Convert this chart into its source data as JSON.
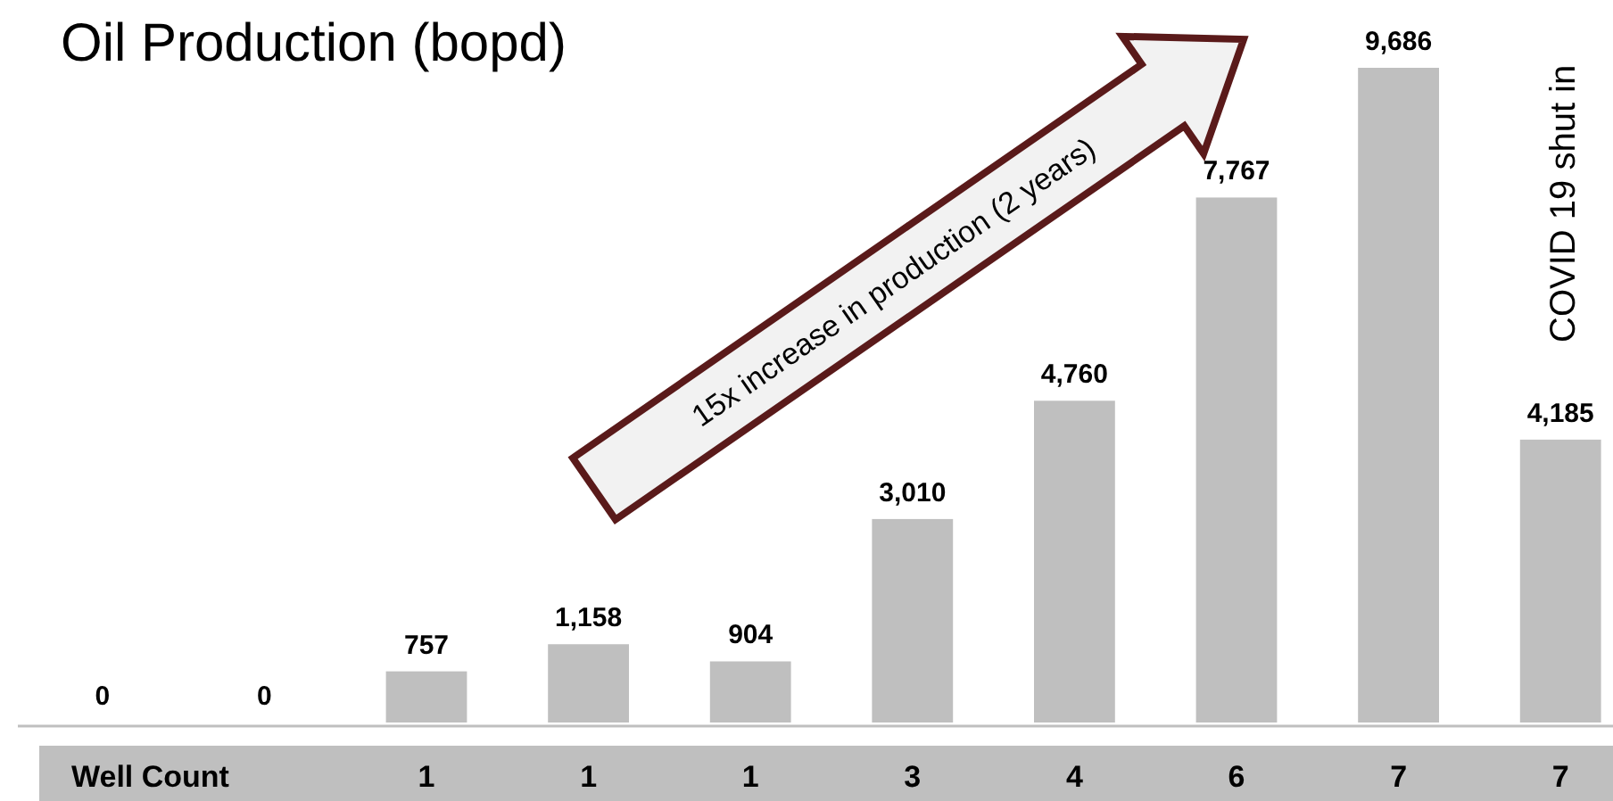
{
  "chart_data": {
    "type": "bar",
    "title": "Oil Production (bopd)",
    "xlabel": "Well Count",
    "categories": [
      null,
      null,
      "1",
      "1",
      "1",
      "3",
      "4",
      "6",
      "7",
      "7"
    ],
    "values": [
      0,
      0,
      757,
      1158,
      904,
      3010,
      4760,
      7767,
      9686,
      4185
    ],
    "value_labels": [
      "0",
      "0",
      "757",
      "1,158",
      "904",
      "3,010",
      "4,760",
      "7,767",
      "9,686",
      "4,185"
    ],
    "color": "#bfbfbf",
    "annotations": [
      "15x increase in production (2 years)",
      "COVID 19 shut in"
    ]
  }
}
